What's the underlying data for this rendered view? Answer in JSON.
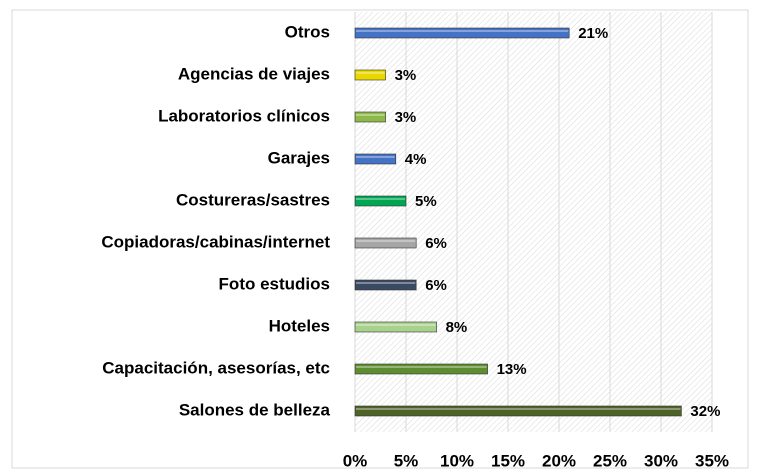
{
  "chart_data": {
    "type": "bar",
    "orientation": "horizontal",
    "categories": [
      "Otros",
      "Agencias de viajes",
      "Laboratorios clínicos",
      "Garajes",
      "Costureras/sastres",
      "Copiadoras/cabinas/internet",
      "Foto estudios",
      "Hoteles",
      "Capacitación, asesorías, etc",
      "Salones de belleza"
    ],
    "values": [
      21,
      3,
      3,
      4,
      5,
      6,
      6,
      8,
      13,
      32
    ],
    "value_labels": [
      "21%",
      "3%",
      "3%",
      "4%",
      "5%",
      "6%",
      "6%",
      "8%",
      "13%",
      "32%"
    ],
    "colors": [
      "#4472c4",
      "#e8d800",
      "#8fb84a",
      "#4472c4",
      "#00a651",
      "#a6a6a6",
      "#3b4a63",
      "#a9d18e",
      "#5e8c31",
      "#4f6228"
    ],
    "xlim": [
      0,
      35
    ],
    "xticks": [
      {
        "value": 0,
        "label": "0%"
      },
      {
        "value": 5,
        "label": "5%"
      },
      {
        "value": 10,
        "label": "10%"
      },
      {
        "value": 15,
        "label": "15%"
      },
      {
        "value": 20,
        "label": "20%"
      },
      {
        "value": 25,
        "label": "25%"
      },
      {
        "value": 30,
        "label": "30%"
      },
      {
        "value": 35,
        "label": "35%"
      }
    ],
    "grid": true
  }
}
